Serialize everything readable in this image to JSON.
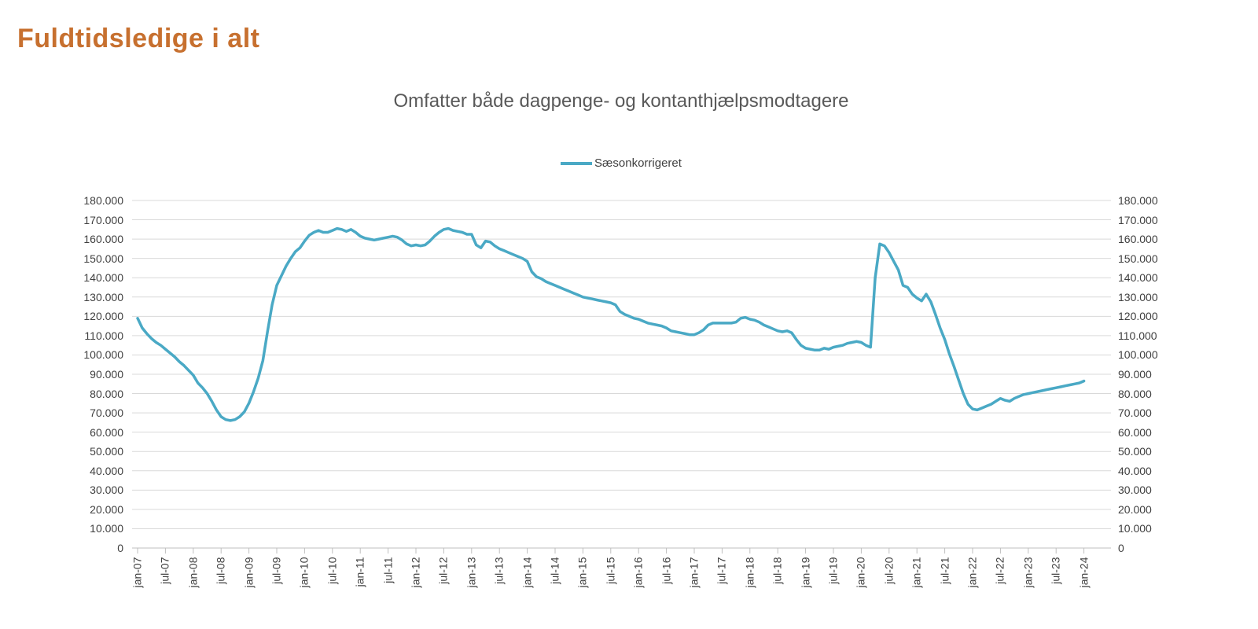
{
  "page_title": "Fuldtidsledige i alt",
  "colors": {
    "accent_line": "#4aa9c5",
    "title_orange": "#c7702f",
    "subtitle_gray": "#595959",
    "axis_label_gray": "#3f3f3f",
    "gridline_gray": "#d9d9d9",
    "axis_line_gray": "#bfbfbf"
  },
  "chart_data": {
    "type": "line",
    "title": "Omfatter både dagpenge- og kontanthjælpsmodtagere",
    "legend_position": "top-center",
    "grid": "horizontal",
    "x_frequency": "monthly",
    "x_start": "jan-07",
    "x_end": "jan-24",
    "x_tick_labels": [
      "jan-07",
      "jul-07",
      "jan-08",
      "jul-08",
      "jan-09",
      "jul-09",
      "jan-10",
      "jul-10",
      "jan-11",
      "jul-11",
      "jan-12",
      "jul-12",
      "jan-13",
      "jul-13",
      "jan-14",
      "jul-14",
      "jan-15",
      "jul-15",
      "jan-16",
      "jul-16",
      "jan-17",
      "jul-17",
      "jan-18",
      "jul-18",
      "jan-19",
      "jul-19",
      "jan-20",
      "jul-20",
      "jan-21",
      "jul-21",
      "jan-22",
      "jul-22",
      "jan-23",
      "jul-23",
      "jan-24"
    ],
    "y_axis": {
      "min": 0,
      "max": 180000,
      "step": 10000,
      "sides": [
        "left",
        "right"
      ]
    },
    "y_tick_labels": [
      "180.000",
      "170.000",
      "160.000",
      "150.000",
      "140.000",
      "130.000",
      "120.000",
      "110.000",
      "100.000",
      "90.000",
      "80.000",
      "70.000",
      "60.000",
      "50.000",
      "40.000",
      "30.000",
      "20.000",
      "10.000",
      "0"
    ],
    "series": [
      {
        "name": "Sæsonkorrigeret",
        "color": "#4aa9c5",
        "values": [
          119000,
          114000,
          111000,
          108500,
          106500,
          105000,
          103000,
          101000,
          99000,
          96500,
          94500,
          92000,
          89500,
          85500,
          83000,
          80000,
          76000,
          71500,
          68000,
          66500,
          66000,
          66500,
          68000,
          70500,
          75000,
          81000,
          88000,
          97000,
          112000,
          126000,
          136000,
          141000,
          146000,
          150000,
          153500,
          155500,
          159000,
          162000,
          163500,
          164500,
          163500,
          163500,
          164500,
          165500,
          165000,
          164000,
          165000,
          163500,
          161500,
          160500,
          160000,
          159500,
          160000,
          160500,
          161000,
          161500,
          161000,
          159500,
          157500,
          156500,
          157000,
          156500,
          157000,
          159000,
          161500,
          163500,
          165000,
          165500,
          164500,
          164000,
          163500,
          162500,
          162500,
          157000,
          155500,
          159000,
          158500,
          156500,
          155000,
          154000,
          153000,
          152000,
          151000,
          150000,
          148500,
          143000,
          140500,
          139500,
          138000,
          137000,
          136000,
          135000,
          134000,
          133000,
          132000,
          131000,
          130000,
          129500,
          129000,
          128500,
          128000,
          127500,
          127000,
          126000,
          122500,
          121000,
          120000,
          119000,
          118500,
          117500,
          116500,
          116000,
          115500,
          115000,
          114000,
          112500,
          112000,
          111500,
          111000,
          110500,
          110500,
          111500,
          113000,
          115500,
          116500,
          116500,
          116500,
          116500,
          116500,
          117000,
          119000,
          119500,
          118500,
          118000,
          117000,
          115500,
          114500,
          113500,
          112500,
          112000,
          112500,
          111500,
          108000,
          105000,
          103500,
          103000,
          102500,
          102500,
          103500,
          103000,
          104000,
          104500,
          105000,
          106000,
          106500,
          107000,
          106500,
          105000,
          104000,
          140000,
          157500,
          156500,
          153000,
          148500,
          144000,
          136000,
          135000,
          131500,
          129500,
          128000,
          131500,
          127500,
          121000,
          114000,
          108000,
          100500,
          94000,
          87000,
          80000,
          74500,
          72000,
          71500,
          72500,
          73500,
          74500,
          76000,
          77500,
          76500,
          76000,
          77500,
          78500,
          79500,
          80000,
          80500,
          81000,
          81500,
          82000,
          82500,
          83000,
          83500,
          84000,
          84500,
          85000,
          85500,
          86500
        ]
      }
    ]
  }
}
